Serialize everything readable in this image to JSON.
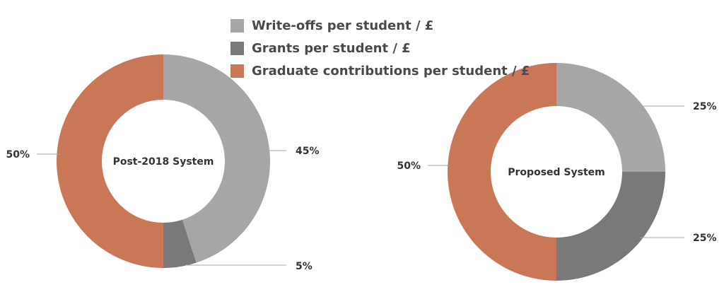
{
  "chart_data": {
    "type": "pie",
    "legend": {
      "placement": "top-center",
      "entries": [
        {
          "label": "Write-offs per student / £",
          "color": "#a6a6a6"
        },
        {
          "label": "Grants per student / £",
          "color": "#797979"
        },
        {
          "label": "Graduate contributions per student / £",
          "color": "#ca7757"
        }
      ]
    },
    "charts": [
      {
        "title": "Post-2018 System",
        "slices": [
          {
            "category": "Write-offs per student / £",
            "value": 45,
            "label": "45%",
            "color": "#a6a6a6"
          },
          {
            "category": "Grants per student / £",
            "value": 5,
            "label": "5%",
            "color": "#797979"
          },
          {
            "category": "Graduate contributions per student / £",
            "value": 50,
            "label": "50%",
            "color": "#ca7757"
          }
        ]
      },
      {
        "title": "Proposed System",
        "slices": [
          {
            "category": "Write-offs per student / £",
            "value": 25,
            "label": "25%",
            "color": "#a6a6a6"
          },
          {
            "category": "Grants per student / £",
            "value": 25,
            "label": "25%",
            "color": "#797979"
          },
          {
            "category": "Graduate contributions per student / £",
            "value": 50,
            "label": "50%",
            "color": "#ca7757"
          }
        ]
      }
    ]
  }
}
